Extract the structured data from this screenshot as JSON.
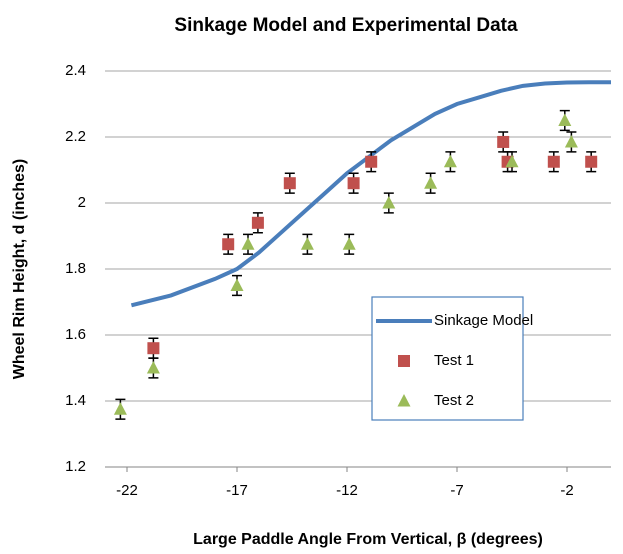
{
  "chart_data": {
    "type": "line",
    "title": "Sinkage Model and Experimental Data",
    "x_label": "Large Paddle Angle From Vertical, β (degrees)",
    "y_label": "Wheel Rim Height, d (inches)",
    "xlim": [
      -23,
      0
    ],
    "xticks": [
      -22,
      -17,
      -12,
      -7,
      -2
    ],
    "ylim": [
      1.2,
      2.4
    ],
    "yticks": [
      1.2,
      1.4,
      1.6,
      1.8,
      2,
      2.2,
      2.4
    ],
    "grid": true,
    "legend": "right",
    "series": [
      {
        "name": "Sinkage Model",
        "color": "#4a7ebb",
        "type": "line",
        "x": [
          -21.8,
          -20,
          -18,
          -17,
          -16,
          -15,
          -14,
          -13,
          -12,
          -11,
          -10,
          -9,
          -8,
          -7,
          -6,
          -5,
          -4,
          -3,
          -2,
          -1,
          0
        ],
        "values": [
          1.69,
          1.72,
          1.77,
          1.8,
          1.85,
          1.91,
          1.97,
          2.03,
          2.09,
          2.14,
          2.19,
          2.23,
          2.27,
          2.3,
          2.32,
          2.34,
          2.355,
          2.362,
          2.365,
          2.366,
          2.366
        ]
      },
      {
        "name": "Test 1",
        "color": "#c0504d",
        "type": "scatter",
        "marker": "square",
        "x": [
          -20.8,
          -17.4,
          -16.05,
          -14.6,
          -11.7,
          -10.9,
          -4.9,
          -4.7,
          -2.6,
          -0.9
        ],
        "values": [
          1.56,
          1.875,
          1.94,
          2.06,
          2.06,
          2.125,
          2.185,
          2.125,
          2.125,
          2.125
        ],
        "errors": [
          0.03,
          0.03,
          0.03,
          0.03,
          0.03,
          0.03,
          0.03,
          0.03,
          0.03,
          0.03
        ]
      },
      {
        "name": "Test 2",
        "color": "#9bbb59",
        "type": "scatter",
        "marker": "triangle",
        "x": [
          -22.3,
          -20.8,
          -17,
          -16.5,
          -13.8,
          -11.9,
          -10.1,
          -8.2,
          -7.3,
          -4.5,
          -2.1,
          -1.8
        ],
        "values": [
          1.375,
          1.5,
          1.75,
          1.875,
          1.875,
          1.875,
          2,
          2.06,
          2.125,
          2.125,
          2.25,
          2.185
        ],
        "errors": [
          0.03,
          0.03,
          0.03,
          0.03,
          0.03,
          0.03,
          0.03,
          0.03,
          0.03,
          0.03,
          0.03,
          0.03
        ]
      }
    ]
  }
}
